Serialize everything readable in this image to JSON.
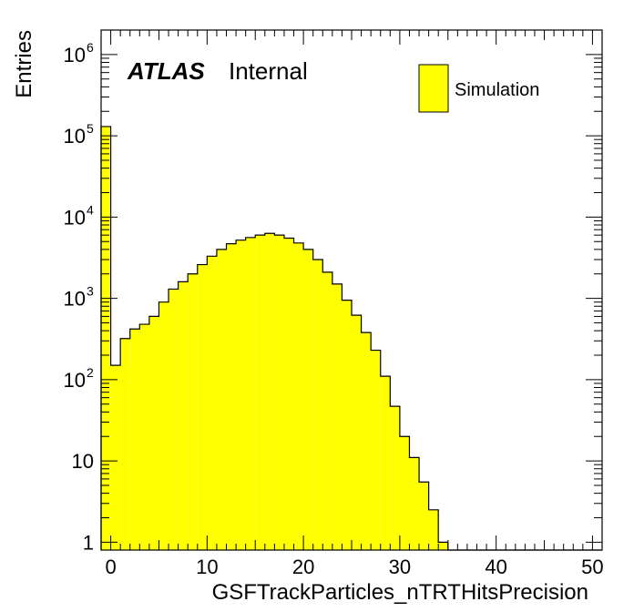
{
  "chart_data": {
    "type": "bar",
    "histogram": true,
    "title": "",
    "xlabel": "GSFTrackParticles_nTRTHitsPrecision",
    "ylabel": "Entries",
    "xlim": [
      -1,
      51
    ],
    "ylim": [
      0.8,
      2000000
    ],
    "yscale": "log",
    "xticks": [
      "0",
      "10",
      "20",
      "30",
      "40",
      "50"
    ],
    "yticks": [
      {
        "base": "1",
        "exp": ""
      },
      {
        "base": "10",
        "exp": ""
      },
      {
        "base": "10",
        "exp": "2"
      },
      {
        "base": "10",
        "exp": "3"
      },
      {
        "base": "10",
        "exp": "4"
      },
      {
        "base": "10",
        "exp": "5"
      },
      {
        "base": "10",
        "exp": "6"
      }
    ],
    "bin_edges_start": -1,
    "bin_width": 1,
    "values": [
      130000,
      150,
      320,
      420,
      480,
      600,
      900,
      1300,
      1600,
      2000,
      2600,
      3300,
      4000,
      4700,
      5200,
      5600,
      6000,
      6300,
      6000,
      5500,
      4800,
      4000,
      3000,
      2100,
      1500,
      950,
      620,
      380,
      230,
      110,
      47,
      20,
      11,
      5.5,
      2.5,
      1,
      0,
      0,
      0,
      0,
      0,
      0,
      0,
      0,
      0,
      0,
      0,
      0,
      0,
      0,
      0,
      0
    ],
    "series": [
      {
        "name": "Simulation",
        "color": "#ffff00",
        "edge_color": "#000000"
      }
    ],
    "annotations": {
      "experiment": "ATLAS",
      "status": "Internal"
    },
    "legend_placement": "top-right",
    "grid": false
  }
}
